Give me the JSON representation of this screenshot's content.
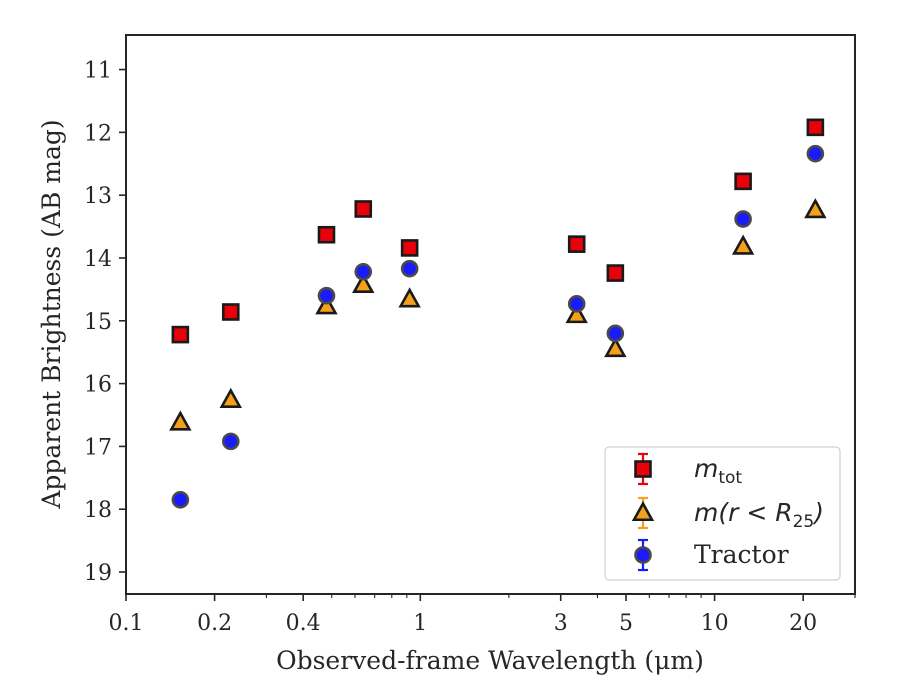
{
  "chart_data": {
    "type": "scatter",
    "xlabel": "Observed-frame Wavelength (μm)",
    "ylabel": "Apparent Brightness (AB mag)",
    "x_scale": "log",
    "xlim": [
      0.1,
      30
    ],
    "ylim": [
      19.35,
      10.45
    ],
    "y_inverted": true,
    "x_tick_labels": [
      "0.1",
      "0.2",
      "0.4",
      "1",
      "3",
      "5",
      "10",
      "20"
    ],
    "y_tick_labels": [
      "11",
      "12",
      "13",
      "14",
      "15",
      "16",
      "17",
      "18",
      "19"
    ],
    "grid": false,
    "legend_position": "lower-right",
    "series": [
      {
        "name": "m_tot",
        "name_main": "m",
        "name_sub": "tot",
        "marker": "square",
        "color": "#e8000b",
        "x": [
          0.153,
          0.227,
          0.48,
          0.64,
          0.92,
          3.4,
          4.6,
          12.5,
          22.0
        ],
        "y": [
          15.22,
          14.86,
          13.63,
          13.22,
          13.84,
          13.78,
          14.24,
          12.78,
          11.92
        ]
      },
      {
        "name": "m(r < R_25)",
        "name_main": "m(r < R",
        "name_sub": "25",
        "name_tail": ")",
        "marker": "triangle",
        "color": "#f5a01a",
        "x": [
          0.153,
          0.227,
          0.48,
          0.64,
          0.92,
          3.4,
          4.6,
          12.5,
          22.0
        ],
        "y": [
          16.62,
          16.26,
          14.77,
          14.43,
          14.66,
          14.91,
          15.45,
          13.82,
          13.24
        ]
      },
      {
        "name": "Tractor",
        "marker": "circle",
        "color": "#1a1aff",
        "x": [
          0.153,
          0.227,
          0.48,
          0.64,
          0.92,
          3.4,
          4.6,
          12.5,
          22.0
        ],
        "y": [
          17.85,
          16.92,
          14.6,
          14.22,
          14.17,
          14.73,
          15.2,
          13.38,
          12.34
        ]
      }
    ]
  }
}
